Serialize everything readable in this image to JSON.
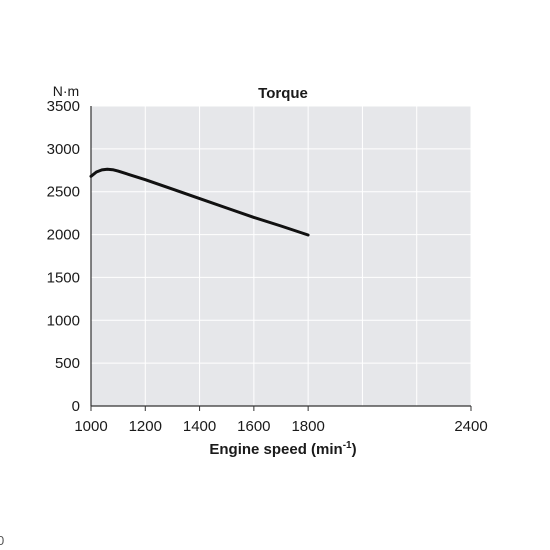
{
  "chart_data": {
    "type": "line",
    "title": "Torque",
    "xlabel": "Engine speed (min",
    "xlabel_sup": "-1",
    "xlabel_close": ")",
    "ylabel": "N·m",
    "xlim": [
      1000,
      2400
    ],
    "ylim": [
      0,
      3500
    ],
    "xticks": [
      1000,
      1200,
      1400,
      1600,
      1800,
      2400
    ],
    "yticks": [
      0,
      500,
      1000,
      1500,
      2000,
      2500,
      3000,
      3500
    ],
    "grid": true,
    "series": [
      {
        "x": [
          1000,
          1020,
          1040,
          1060,
          1080,
          1100,
          1200,
          1300,
          1400,
          1500,
          1600,
          1700,
          1800
        ],
        "y": [
          2680,
          2730,
          2755,
          2762,
          2757,
          2740,
          2640,
          2530,
          2420,
          2310,
          2200,
          2100,
          1995
        ]
      }
    ]
  },
  "colors": {
    "plot_bg": "#e6e7ea",
    "grid": "#ffffff",
    "line": "#111111"
  },
  "stray_text": "0"
}
